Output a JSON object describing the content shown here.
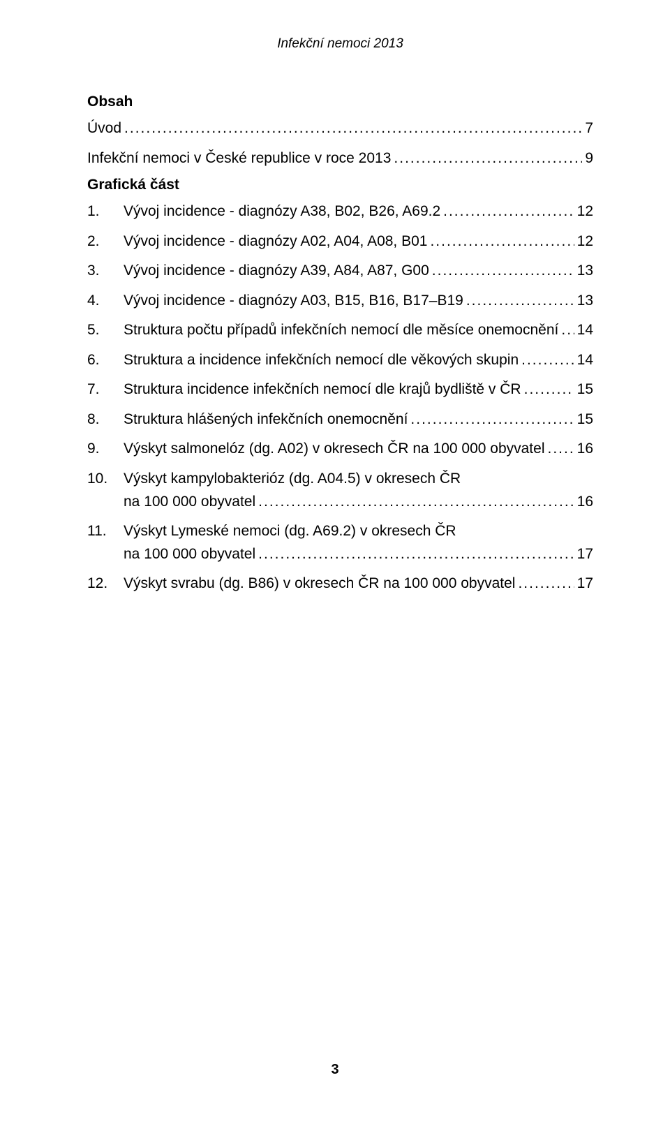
{
  "header": "Infekční nemoci 2013",
  "sections": {
    "obsah": "Obsah",
    "graficka_cast": "Grafická část"
  },
  "toc": {
    "uvod": {
      "label": "Úvod",
      "page": "7"
    },
    "chapter_intro": {
      "label": "Infekční nemoci v České republice v roce 2013",
      "page": "9"
    },
    "items": [
      {
        "num": "1.",
        "label": "Vývoj incidence - diagnózy A38, B02, B26, A69.2",
        "page": "12"
      },
      {
        "num": "2.",
        "label": "Vývoj incidence - diagnózy A02, A04, A08, B01",
        "page": "12"
      },
      {
        "num": "3.",
        "label": "Vývoj incidence - diagnózy A39, A84, A87, G00",
        "page": "13"
      },
      {
        "num": "4.",
        "label": "Vývoj incidence - diagnózy A03, B15, B16, B17–B19",
        "page": "13"
      },
      {
        "num": "5.",
        "label": "Struktura počtu případů infekčních nemocí dle měsíce onemocnění",
        "page": "14"
      },
      {
        "num": "6.",
        "label": "Struktura a incidence infekčních nemocí dle věkových skupin",
        "page": "14"
      },
      {
        "num": "7.",
        "label": "Struktura incidence infekčních nemocí dle krajů bydliště v ČR",
        "page": "15"
      },
      {
        "num": "8.",
        "label": "Struktura hlášených infekčních onemocnění",
        "page": "15"
      },
      {
        "num": "9.",
        "label": "Výskyt salmonelóz (dg. A02) v okresech ČR na 100 000 obyvatel",
        "page": "16"
      },
      {
        "num": "10.",
        "line1": "Výskyt kampylobakterióz (dg. A04.5) v okresech ČR",
        "line2": "na 100 000 obyvatel",
        "page": "16"
      },
      {
        "num": "11.",
        "line1": "Výskyt Lymeské nemoci (dg. A69.2) v okresech ČR",
        "line2": "na 100 000 obyvatel",
        "page": "17"
      },
      {
        "num": "12.",
        "label": "Výskyt svrabu (dg. B86) v okresech ČR na 100 000 obyvatel",
        "page": "17"
      }
    ]
  },
  "page_number": "3",
  "style": {
    "background_color": "#ffffff",
    "text_color": "#000000",
    "font_family": "Arial",
    "body_fontsize": 21,
    "header_fontsize": 19,
    "heading_weight": "bold",
    "header_style": "italic"
  }
}
